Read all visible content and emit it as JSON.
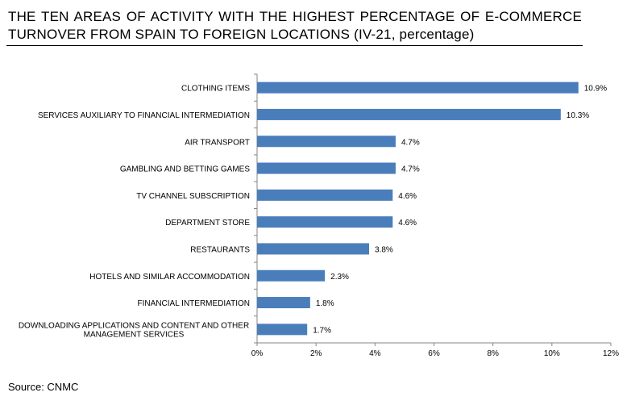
{
  "title": "THE TEN AREAS OF ACTIVITY WITH THE HIGHEST PERCENTAGE OF E-COMMERCE TURNOVER FROM SPAIN TO FOREIGN LOCATIONS (IV-21, percentage)",
  "source": "Source: CNMC",
  "colors": {
    "bar": "#4a7ebb",
    "axis": "#868686"
  },
  "chart_data": {
    "type": "bar",
    "orientation": "horizontal",
    "categories": [
      "CLOTHING ITEMS",
      "SERVICES AUXILIARY TO FINANCIAL INTERMEDIATION",
      "AIR TRANSPORT",
      "GAMBLING AND BETTING GAMES",
      "TV CHANNEL SUBSCRIPTION",
      "DEPARTMENT STORE",
      "RESTAURANTS",
      "HOTELS AND SIMILAR ACCOMMODATION",
      "FINANCIAL INTERMEDIATION",
      "DOWNLOADING APPLICATIONS AND CONTENT AND OTHER MANAGEMENT SERVICES"
    ],
    "values": [
      10.9,
      10.3,
      4.7,
      4.7,
      4.6,
      4.6,
      3.8,
      2.3,
      1.8,
      1.7
    ],
    "data_labels": [
      "10.9%",
      "10.3%",
      "4.7%",
      "4.7%",
      "4.6%",
      "4.6%",
      "3.8%",
      "2.3%",
      "1.8%",
      "1.7%"
    ],
    "xlim": [
      0,
      12
    ],
    "xticks": [
      0,
      2,
      4,
      6,
      8,
      10,
      12
    ],
    "xtick_labels": [
      "0%",
      "2%",
      "4%",
      "6%",
      "8%",
      "10%",
      "12%"
    ],
    "grid": false,
    "legend": "none"
  }
}
